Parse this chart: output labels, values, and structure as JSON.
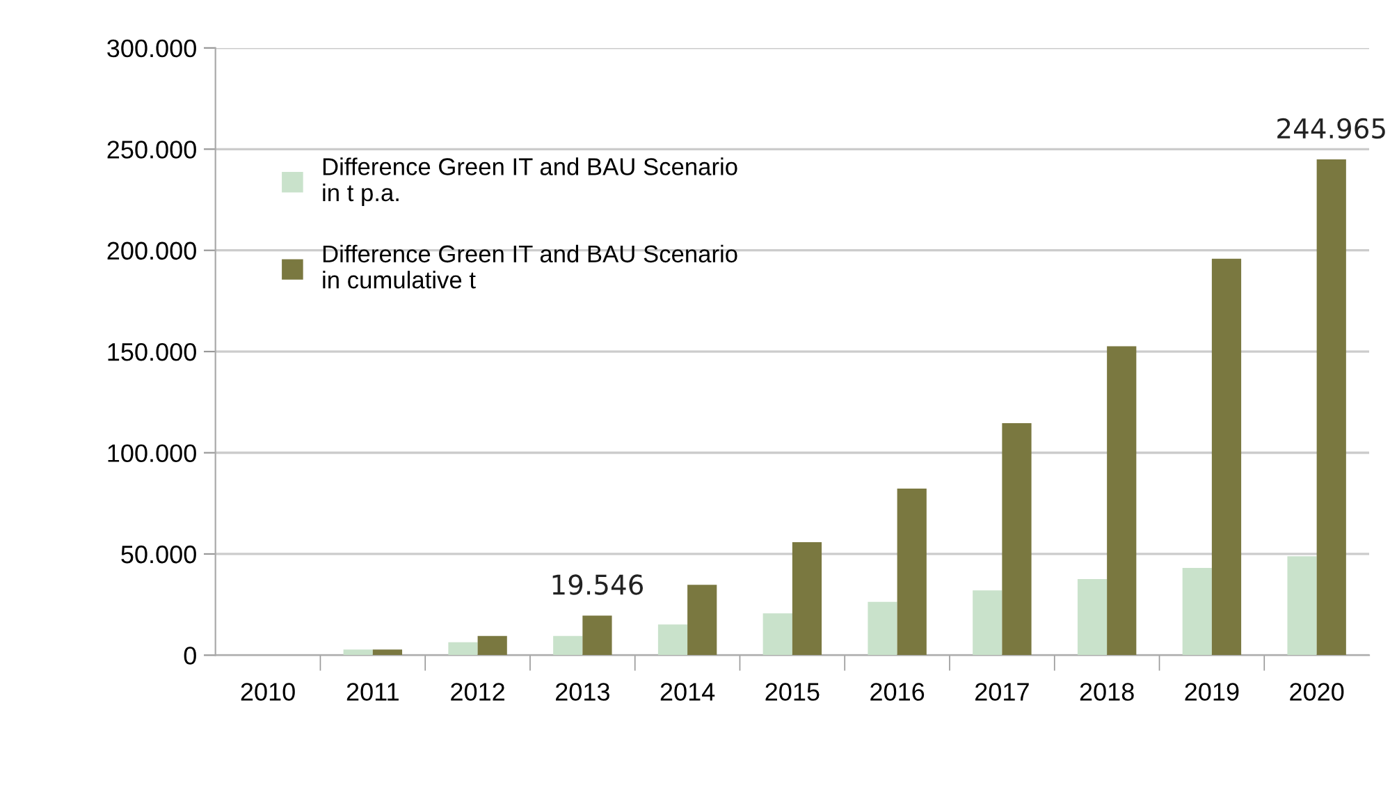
{
  "chart_data": {
    "type": "bar",
    "categories": [
      "2010",
      "2011",
      "2012",
      "2013",
      "2014",
      "2015",
      "2016",
      "2017",
      "2018",
      "2019",
      "2020"
    ],
    "series": [
      {
        "name": "Difference Green IT and BAU Scenario\nin t p.a.",
        "color": "#c9e2cb",
        "values": [
          0,
          2800,
          6400,
          9500,
          15200,
          20700,
          26300,
          32000,
          37600,
          43100,
          48900
        ]
      },
      {
        "name": "Difference Green IT and BAU Scenario\nin cumulative t",
        "color": "#7a7840",
        "values": [
          0,
          2800,
          9500,
          19546,
          34800,
          55800,
          82300,
          114600,
          152600,
          195900,
          244965
        ],
        "value_labels": [
          null,
          null,
          null,
          "19.546",
          null,
          null,
          null,
          null,
          null,
          null,
          "244.965"
        ]
      }
    ],
    "ylim": [
      0,
      300000
    ],
    "yticks": [
      0,
      {
        "value": 50000,
        "label": "50.000"
      },
      {
        "value": 100000,
        "label": "100.000"
      },
      {
        "value": 150000,
        "label": "150.000"
      },
      {
        "value": 200000,
        "label": "200.000"
      },
      {
        "value": 250000,
        "label": "250.000"
      },
      {
        "value": 300000,
        "label": "300.000"
      }
    ],
    "grid": "y",
    "legend": "top left"
  }
}
